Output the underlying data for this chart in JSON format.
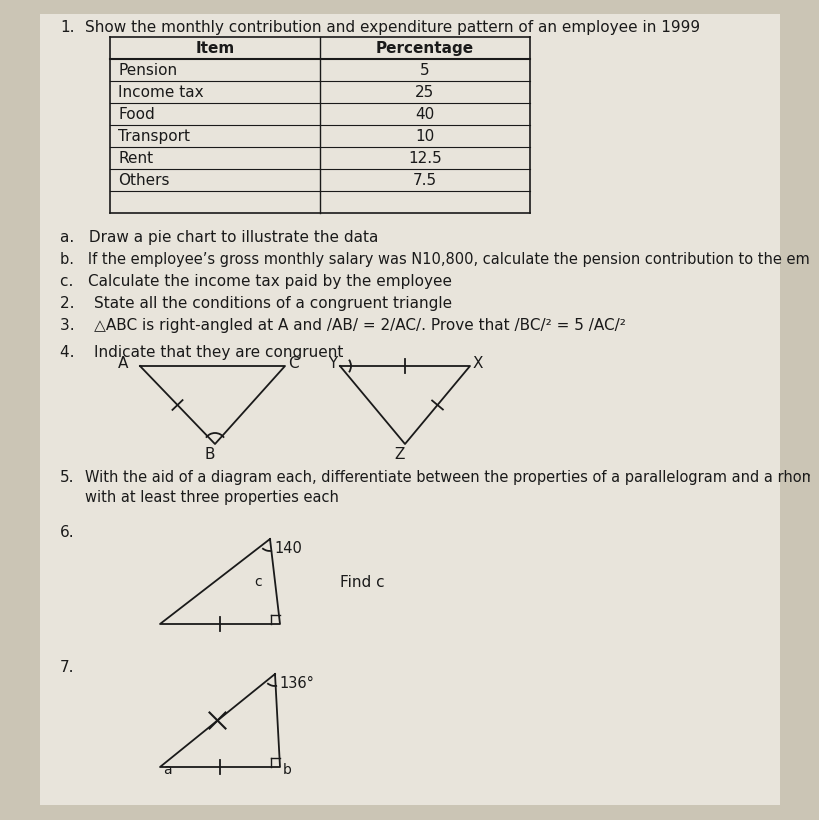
{
  "bg_color": "#cbc5b5",
  "paper_color": "#e8e4db",
  "text_color": "#1a1a1a",
  "title": "Show the monthly contribution and expenditure pattern of an employee in 1999",
  "table_items": [
    "Pension",
    "Income tax",
    "Food",
    "Transport",
    "Rent",
    "Others"
  ],
  "table_percentages": [
    "5",
    "25",
    "40",
    "10",
    "12.5",
    "7.5"
  ],
  "q1a": "a.   Draw a pie chart to illustrate the data",
  "q1b": "b.   If the employee’s gross monthly salary was N10,800, calculate the pension contribution to the employee",
  "q1c": "c.   Calculate the income tax paid by the employee",
  "q2": "2.    State all the conditions of a congruent triangle",
  "q3": "3.    △ABC is right-angled at A and /AB/ = 2/AC/. Prove that /BC/² = 5 /AC/²",
  "q4_label": "4.    Indicate that they are congruent",
  "q6_angle": "140",
  "q6_side": "c",
  "q7_angle": "136°"
}
